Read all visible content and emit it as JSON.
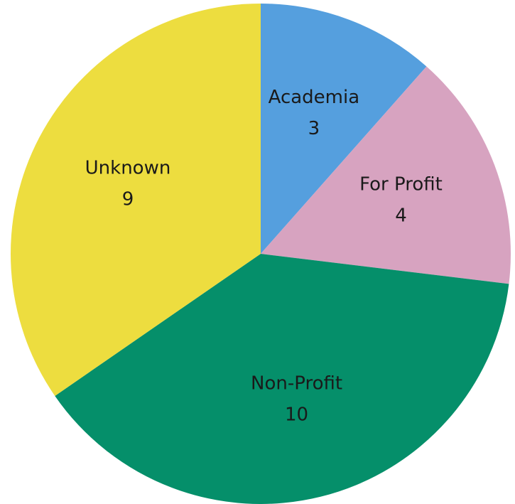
{
  "chart_data": {
    "type": "pie",
    "categories": [
      "Academia",
      "For Profit",
      "Non-Profit",
      "Unknown"
    ],
    "values": [
      3,
      4,
      10,
      9
    ],
    "colors": [
      "#559fde",
      "#d7a3c0",
      "#058f6a",
      "#eddd3f"
    ]
  }
}
